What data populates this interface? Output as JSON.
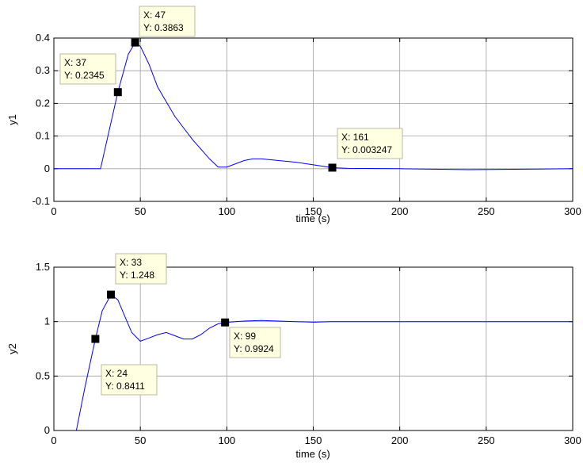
{
  "chart_data": [
    {
      "type": "line",
      "xlabel": "time (s)",
      "ylabel": "y1",
      "xlim": [
        0,
        300
      ],
      "ylim": [
        -0.1,
        0.4
      ],
      "xticks": [
        "0",
        "50",
        "100",
        "150",
        "200",
        "250",
        "300"
      ],
      "yticks": [
        "-0.1",
        "0",
        "0.1",
        "0.2",
        "0.3",
        "0.4"
      ],
      "grid": true,
      "color": "#0000ff",
      "series": [
        {
          "x": [
            0,
            27,
            37,
            43,
            47,
            50,
            55,
            60,
            70,
            80,
            90,
            95,
            100,
            105,
            110,
            115,
            120,
            130,
            140,
            150,
            161,
            170,
            200,
            240,
            280,
            300
          ],
          "y": [
            0,
            0,
            0.2345,
            0.35,
            0.3863,
            0.375,
            0.32,
            0.25,
            0.16,
            0.09,
            0.03,
            0.005,
            0.005,
            0.015,
            0.025,
            0.03,
            0.03,
            0.025,
            0.02,
            0.012,
            0.003247,
            0.001,
            0,
            -0.003,
            -0.001,
            0
          ]
        }
      ],
      "datatips": [
        {
          "x": 37,
          "y": 0.2345,
          "x_text": "X: 37",
          "y_text": "Y: 0.2345"
        },
        {
          "x": 47,
          "y": 0.3863,
          "x_text": "X: 47",
          "y_text": "Y: 0.3863"
        },
        {
          "x": 161,
          "y": 0.003247,
          "x_text": "X: 161",
          "y_text": "Y: 0.003247"
        }
      ]
    },
    {
      "type": "line",
      "xlabel": "time (s)",
      "ylabel": "y2",
      "xlim": [
        0,
        300
      ],
      "ylim": [
        0,
        1.5
      ],
      "xticks": [
        "0",
        "50",
        "100",
        "150",
        "200",
        "250",
        "300"
      ],
      "yticks": [
        "0",
        "0.5",
        "1",
        "1.5"
      ],
      "grid": true,
      "color": "#0000ff",
      "series": [
        {
          "x": [
            0,
            13,
            18,
            24,
            28,
            33,
            37,
            41,
            45,
            50,
            55,
            60,
            65,
            70,
            75,
            80,
            85,
            90,
            95,
            99,
            105,
            110,
            120,
            130,
            140,
            150,
            160,
            200,
            250,
            300
          ],
          "y": [
            0,
            0,
            0.4,
            0.8411,
            1.1,
            1.248,
            1.2,
            1.05,
            0.9,
            0.82,
            0.85,
            0.88,
            0.9,
            0.87,
            0.84,
            0.84,
            0.88,
            0.94,
            0.98,
            0.9924,
            1.0,
            1.005,
            1.01,
            1.005,
            1.0,
            0.995,
            1.0,
            1.0,
            1.0,
            1.0
          ]
        }
      ],
      "datatips": [
        {
          "x": 24,
          "y": 0.8411,
          "x_text": "X: 24",
          "y_text": "Y: 0.8411"
        },
        {
          "x": 33,
          "y": 1.248,
          "x_text": "X: 33",
          "y_text": "Y: 1.248"
        },
        {
          "x": 99,
          "y": 0.9924,
          "x_text": "X: 99",
          "y_text": "Y: 0.9924"
        }
      ]
    }
  ]
}
